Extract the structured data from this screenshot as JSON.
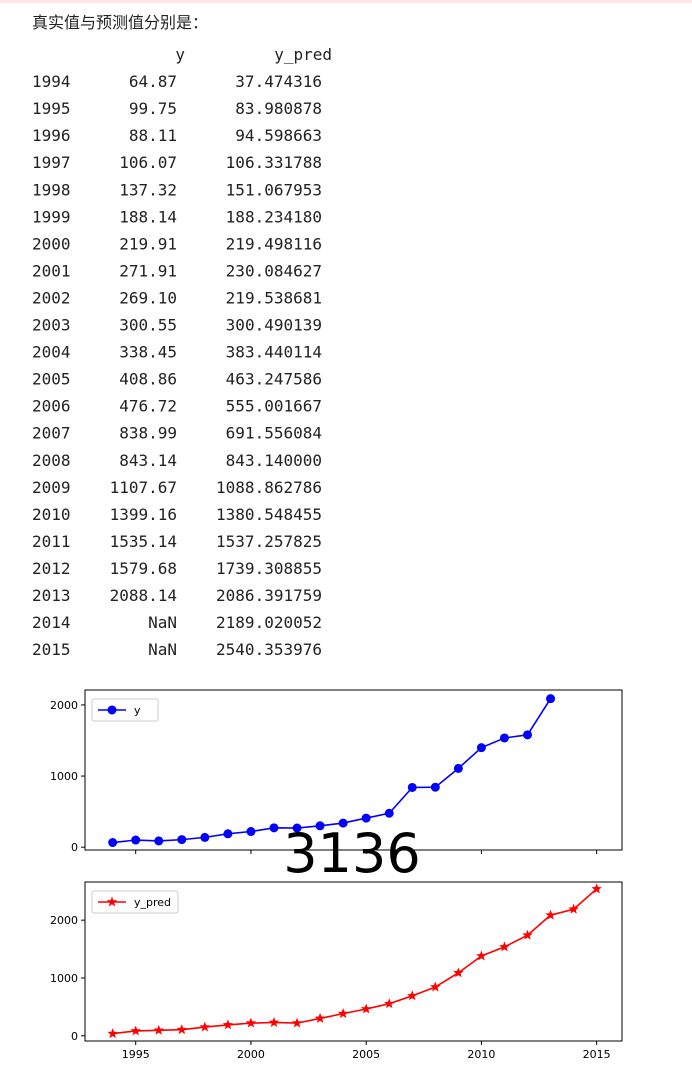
{
  "output": {
    "heading": "真实值与预测值分别是：",
    "table": {
      "header": [
        "y",
        "y_pred"
      ],
      "rows": [
        [
          "1994",
          "64.87",
          "37.474316"
        ],
        [
          "1995",
          "99.75",
          "83.980878"
        ],
        [
          "1996",
          "88.11",
          "94.598663"
        ],
        [
          "1997",
          "106.07",
          "106.331788"
        ],
        [
          "1998",
          "137.32",
          "151.067953"
        ],
        [
          "1999",
          "188.14",
          "188.234180"
        ],
        [
          "2000",
          "219.91",
          "219.498116"
        ],
        [
          "2001",
          "271.91",
          "230.084627"
        ],
        [
          "2002",
          "269.10",
          "219.538681"
        ],
        [
          "2003",
          "300.55",
          "300.490139"
        ],
        [
          "2004",
          "338.45",
          "383.440114"
        ],
        [
          "2005",
          "408.86",
          "463.247586"
        ],
        [
          "2006",
          "476.72",
          "555.001667"
        ],
        [
          "2007",
          "838.99",
          "691.556084"
        ],
        [
          "2008",
          "843.14",
          "843.140000"
        ],
        [
          "2009",
          "1107.67",
          "1088.862786"
        ],
        [
          "2010",
          "1399.16",
          "1380.548455"
        ],
        [
          "2011",
          "1535.14",
          "1537.257825"
        ],
        [
          "2012",
          "1579.68",
          "1739.308855"
        ],
        [
          "2013",
          "2088.14",
          "2086.391759"
        ],
        [
          "2014",
          "NaN",
          "2189.020052"
        ],
        [
          "2015",
          "NaN",
          "2540.353976"
        ]
      ]
    },
    "overlay": "3136"
  },
  "chart_data": [
    {
      "type": "line",
      "x": [
        1994,
        1995,
        1996,
        1997,
        1998,
        1999,
        2000,
        2001,
        2002,
        2003,
        2004,
        2005,
        2006,
        2007,
        2008,
        2009,
        2010,
        2011,
        2012,
        2013,
        2014,
        2015
      ],
      "series": [
        {
          "name": "y",
          "color": "#0000ff",
          "marker": "circle",
          "values": [
            64.87,
            99.75,
            88.11,
            106.07,
            137.32,
            188.14,
            219.91,
            271.91,
            269.1,
            300.55,
            338.45,
            408.86,
            476.72,
            838.99,
            843.14,
            1107.67,
            1399.16,
            1535.14,
            1579.68,
            2088.14,
            null,
            null
          ]
        }
      ],
      "xlim": [
        1992.8,
        2016.1
      ],
      "xticks": [
        1995,
        2000,
        2005,
        2010,
        2015
      ],
      "show_xtick_labels": false,
      "ylim": [
        -40,
        2210
      ],
      "yticks": [
        0,
        1000,
        2000
      ],
      "legend": "upper-left"
    },
    {
      "type": "line",
      "x": [
        1994,
        1995,
        1996,
        1997,
        1998,
        1999,
        2000,
        2001,
        2002,
        2003,
        2004,
        2005,
        2006,
        2007,
        2008,
        2009,
        2010,
        2011,
        2012,
        2013,
        2014,
        2015
      ],
      "series": [
        {
          "name": "y_pred",
          "color": "#ff0000",
          "marker": "star",
          "values": [
            37.474316,
            83.980878,
            94.598663,
            106.331788,
            151.067953,
            188.23418,
            219.498116,
            230.084627,
            219.538681,
            300.490139,
            383.440114,
            463.247586,
            555.001667,
            691.556084,
            843.14,
            1088.862786,
            1380.548455,
            1537.257825,
            1739.308855,
            2086.391759,
            2189.020052,
            2540.353976
          ]
        }
      ],
      "xlim": [
        1992.8,
        2016.1
      ],
      "xticks": [
        1995,
        2000,
        2005,
        2010,
        2015
      ],
      "show_xtick_labels": true,
      "ylim": [
        -90,
        2660
      ],
      "yticks": [
        0,
        1000,
        2000
      ],
      "legend": "upper-left"
    }
  ]
}
